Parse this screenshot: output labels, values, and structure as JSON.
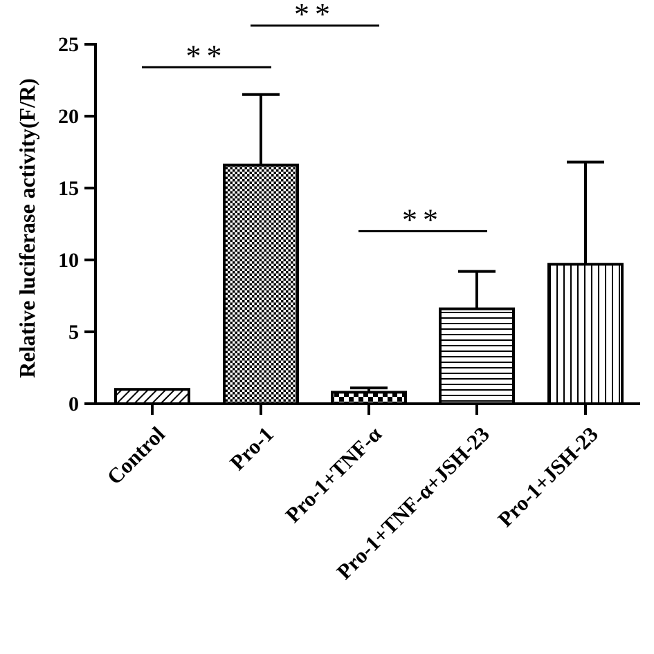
{
  "chart_data": {
    "type": "bar",
    "ylabel": "Relative luciferase activity(F/R)",
    "xlabel": "",
    "ylim": [
      0,
      25
    ],
    "yticks": [
      "0",
      "5",
      "10",
      "15",
      "20",
      "25"
    ],
    "categories": [
      "Control",
      "Pro-1",
      "Pro-1+TNF-α",
      "Pro-1+TNF-α+JSH-23",
      "Pro-1+JSH-23"
    ],
    "values": [
      1.0,
      16.6,
      0.8,
      6.6,
      9.7
    ],
    "errors": [
      0.0,
      4.9,
      0.3,
      2.6,
      7.1
    ],
    "patterns": [
      "diagonal-hatch",
      "crosshatch",
      "checkerboard",
      "horizontal-lines",
      "vertical-lines"
    ],
    "significance": [
      {
        "from": "Control",
        "to": "Pro-1",
        "label": "**",
        "y": 23.4
      },
      {
        "from": "Pro-1",
        "to": "Pro-1+TNF-α",
        "label": "**",
        "y": 26.3
      },
      {
        "from": "Pro-1+TNF-α",
        "to": "Pro-1+TNF-α+JSH-23",
        "label": "**",
        "y": 12.0
      }
    ],
    "grid": false,
    "legend": "none"
  }
}
